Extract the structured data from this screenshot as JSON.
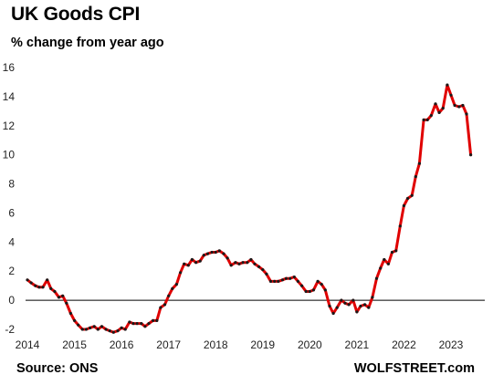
{
  "title": "UK Goods  CPI",
  "subtitle": "% change from year ago",
  "source": "Source: ONS",
  "brand": "WOLFSTREET.com",
  "colors": {
    "line": "#e00000",
    "marker": "#1a1a1a",
    "zero_line": "#000000"
  },
  "chart_data": {
    "type": "line",
    "title": "UK Goods  CPI",
    "subtitle": "% change from year ago",
    "xlabel": "",
    "ylabel": "",
    "ylim": [
      -2,
      16
    ],
    "xlim": [
      2014,
      2023.33
    ],
    "yticks": [
      -2,
      0,
      2,
      4,
      6,
      8,
      10,
      12,
      14,
      16
    ],
    "xticks": [
      2014,
      2015,
      2016,
      2017,
      2018,
      2019,
      2020,
      2021,
      2022,
      2023
    ],
    "grid": false,
    "legend": "none",
    "series": [
      {
        "values": [
          [
            2014.0,
            1.4
          ],
          [
            2014.08,
            1.2
          ],
          [
            2014.17,
            1.0
          ],
          [
            2014.25,
            0.9
          ],
          [
            2014.33,
            0.9
          ],
          [
            2014.42,
            1.4
          ],
          [
            2014.5,
            0.8
          ],
          [
            2014.58,
            0.6
          ],
          [
            2014.67,
            0.2
          ],
          [
            2014.75,
            0.3
          ],
          [
            2014.83,
            -0.2
          ],
          [
            2014.92,
            -0.9
          ],
          [
            2015.0,
            -1.4
          ],
          [
            2015.08,
            -1.7
          ],
          [
            2015.17,
            -2.0
          ],
          [
            2015.25,
            -2.0
          ],
          [
            2015.33,
            -1.9
          ],
          [
            2015.42,
            -1.8
          ],
          [
            2015.5,
            -2.0
          ],
          [
            2015.58,
            -1.8
          ],
          [
            2015.67,
            -2.0
          ],
          [
            2015.75,
            -2.1
          ],
          [
            2015.83,
            -2.2
          ],
          [
            2015.92,
            -2.1
          ],
          [
            2016.0,
            -1.9
          ],
          [
            2016.08,
            -2.0
          ],
          [
            2016.17,
            -1.5
          ],
          [
            2016.25,
            -1.6
          ],
          [
            2016.33,
            -1.6
          ],
          [
            2016.42,
            -1.6
          ],
          [
            2016.5,
            -1.8
          ],
          [
            2016.58,
            -1.6
          ],
          [
            2016.67,
            -1.4
          ],
          [
            2016.75,
            -1.4
          ],
          [
            2016.83,
            -0.5
          ],
          [
            2016.92,
            -0.3
          ],
          [
            2017.0,
            0.3
          ],
          [
            2017.08,
            0.8
          ],
          [
            2017.17,
            1.1
          ],
          [
            2017.25,
            1.9
          ],
          [
            2017.33,
            2.5
          ],
          [
            2017.42,
            2.4
          ],
          [
            2017.5,
            2.8
          ],
          [
            2017.58,
            2.6
          ],
          [
            2017.67,
            2.7
          ],
          [
            2017.75,
            3.1
          ],
          [
            2017.83,
            3.2
          ],
          [
            2017.92,
            3.3
          ],
          [
            2018.0,
            3.3
          ],
          [
            2018.08,
            3.4
          ],
          [
            2018.17,
            3.2
          ],
          [
            2018.25,
            2.9
          ],
          [
            2018.33,
            2.4
          ],
          [
            2018.42,
            2.6
          ],
          [
            2018.5,
            2.5
          ],
          [
            2018.58,
            2.6
          ],
          [
            2018.67,
            2.6
          ],
          [
            2018.75,
            2.8
          ],
          [
            2018.83,
            2.5
          ],
          [
            2018.92,
            2.3
          ],
          [
            2019.0,
            2.1
          ],
          [
            2019.08,
            1.8
          ],
          [
            2019.17,
            1.3
          ],
          [
            2019.25,
            1.3
          ],
          [
            2019.33,
            1.3
          ],
          [
            2019.42,
            1.4
          ],
          [
            2019.5,
            1.5
          ],
          [
            2019.58,
            1.5
          ],
          [
            2019.67,
            1.6
          ],
          [
            2019.75,
            1.3
          ],
          [
            2019.83,
            1.0
          ],
          [
            2019.92,
            0.6
          ],
          [
            2020.0,
            0.6
          ],
          [
            2020.08,
            0.7
          ],
          [
            2020.17,
            1.3
          ],
          [
            2020.25,
            1.1
          ],
          [
            2020.33,
            0.7
          ],
          [
            2020.42,
            -0.4
          ],
          [
            2020.5,
            -0.9
          ],
          [
            2020.58,
            -0.5
          ],
          [
            2020.67,
            0.0
          ],
          [
            2020.75,
            -0.2
          ],
          [
            2020.83,
            -0.3
          ],
          [
            2020.92,
            0.0
          ],
          [
            2021.0,
            -0.8
          ],
          [
            2021.08,
            -0.4
          ],
          [
            2021.17,
            -0.3
          ],
          [
            2021.25,
            -0.5
          ],
          [
            2021.33,
            0.2
          ],
          [
            2021.42,
            1.5
          ],
          [
            2021.5,
            2.2
          ],
          [
            2021.58,
            2.8
          ],
          [
            2021.67,
            2.5
          ],
          [
            2021.75,
            3.3
          ],
          [
            2021.83,
            3.4
          ],
          [
            2021.92,
            5.1
          ],
          [
            2022.0,
            6.5
          ],
          [
            2022.08,
            7.0
          ],
          [
            2022.17,
            7.2
          ],
          [
            2022.25,
            8.5
          ],
          [
            2022.33,
            9.4
          ],
          [
            2022.42,
            12.4
          ],
          [
            2022.5,
            12.4
          ],
          [
            2022.58,
            12.7
          ],
          [
            2022.67,
            13.5
          ],
          [
            2022.75,
            12.9
          ],
          [
            2022.83,
            13.2
          ],
          [
            2022.92,
            14.8
          ],
          [
            2023.0,
            14.1
          ],
          [
            2023.08,
            13.4
          ],
          [
            2023.17,
            13.3
          ],
          [
            2023.25,
            13.4
          ],
          [
            2023.33,
            12.8
          ],
          [
            2023.42,
            10.0
          ]
        ]
      }
    ]
  }
}
